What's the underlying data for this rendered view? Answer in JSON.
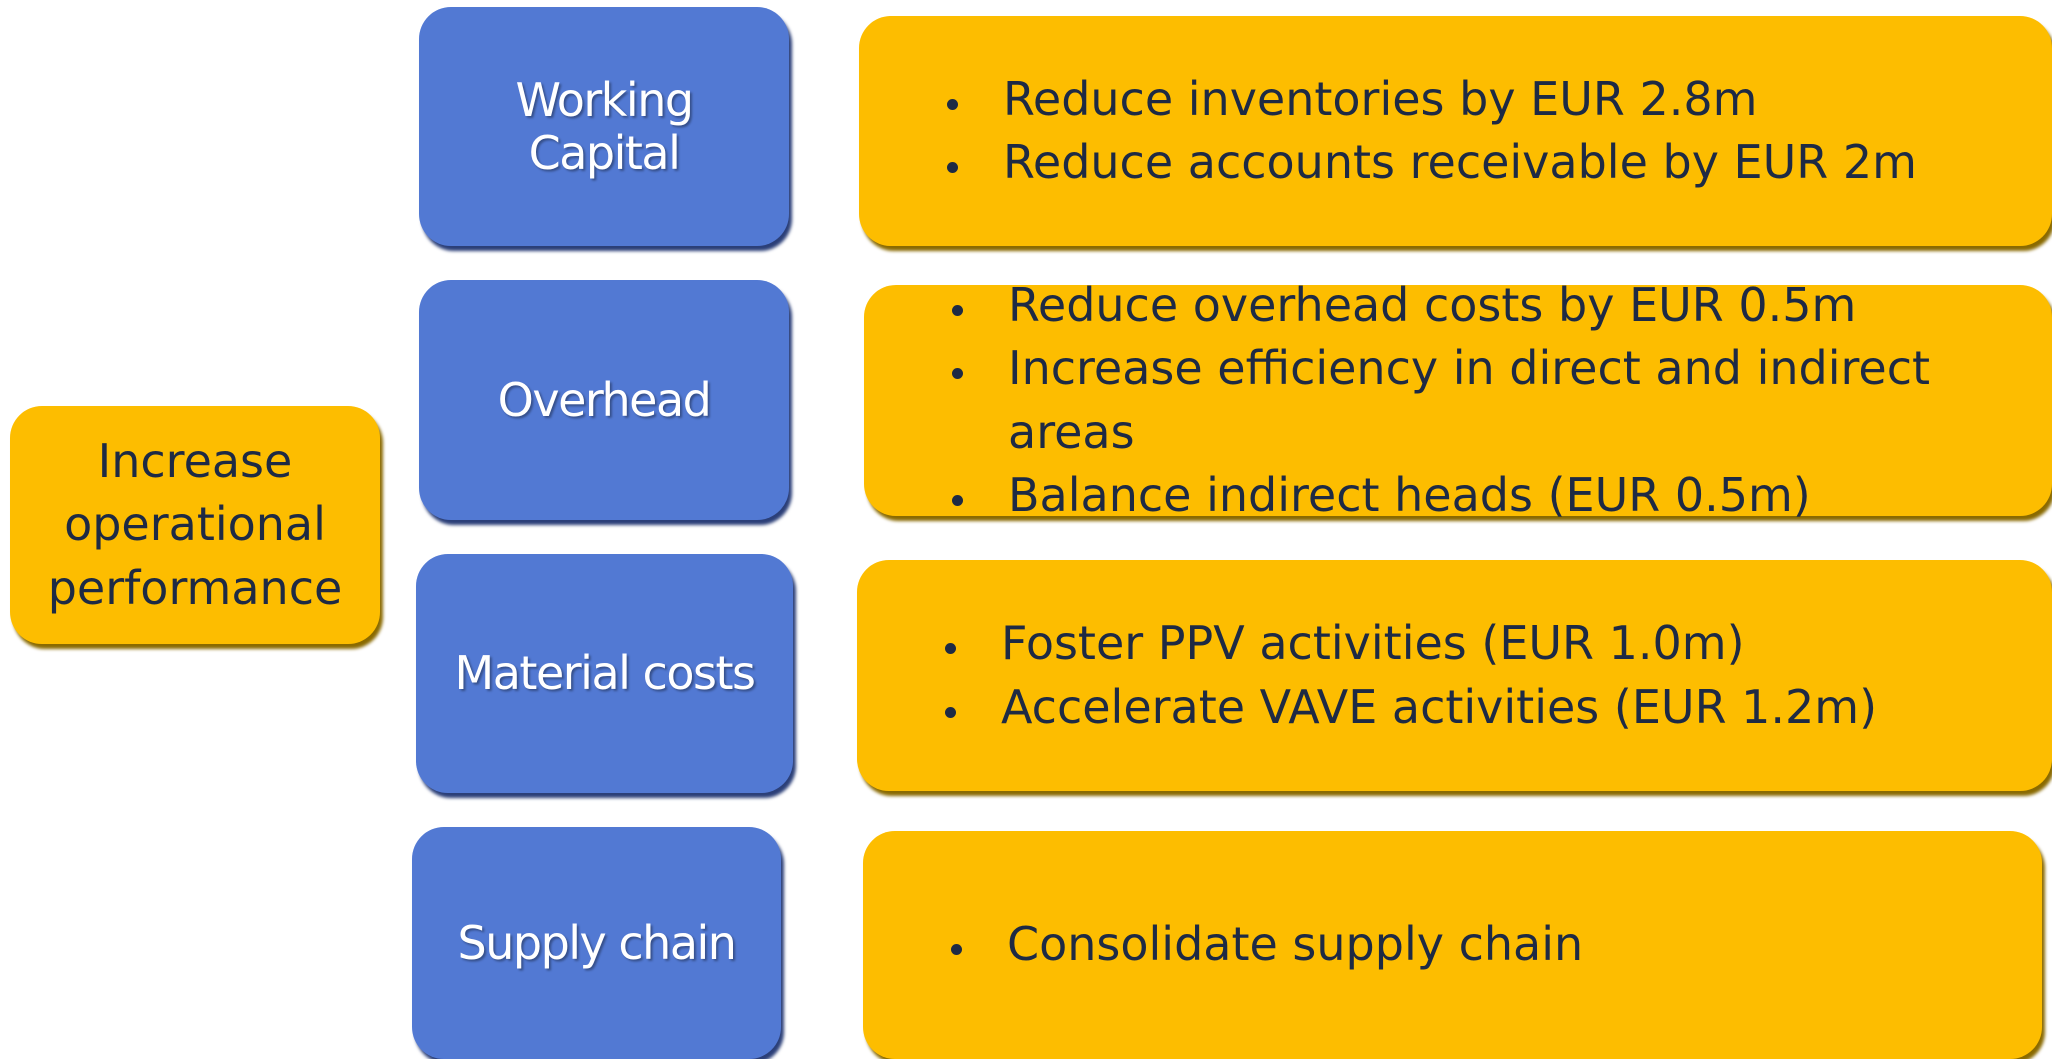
{
  "root": {
    "lines": [
      "Increase",
      "operational",
      "performance"
    ]
  },
  "branches": [
    {
      "lines": [
        "Working",
        "Capital"
      ],
      "items": [
        "Reduce inventories by EUR 2.8m",
        "Reduce accounts receivable by EUR 2m"
      ]
    },
    {
      "lines": [
        "Overhead"
      ],
      "items": [
        "Reduce overhead costs by EUR 0.5m",
        "Increase efficiency in direct and indirect areas",
        "Balance indirect heads (EUR 0.5m)"
      ]
    },
    {
      "lines": [
        "Material costs"
      ],
      "items": [
        "Foster PPV activities (EUR 1.0m)",
        "Accelerate VAVE activities (EUR 1.2m)"
      ]
    },
    {
      "lines": [
        "Supply chain"
      ],
      "items": [
        "Consolidate supply chain"
      ]
    }
  ]
}
